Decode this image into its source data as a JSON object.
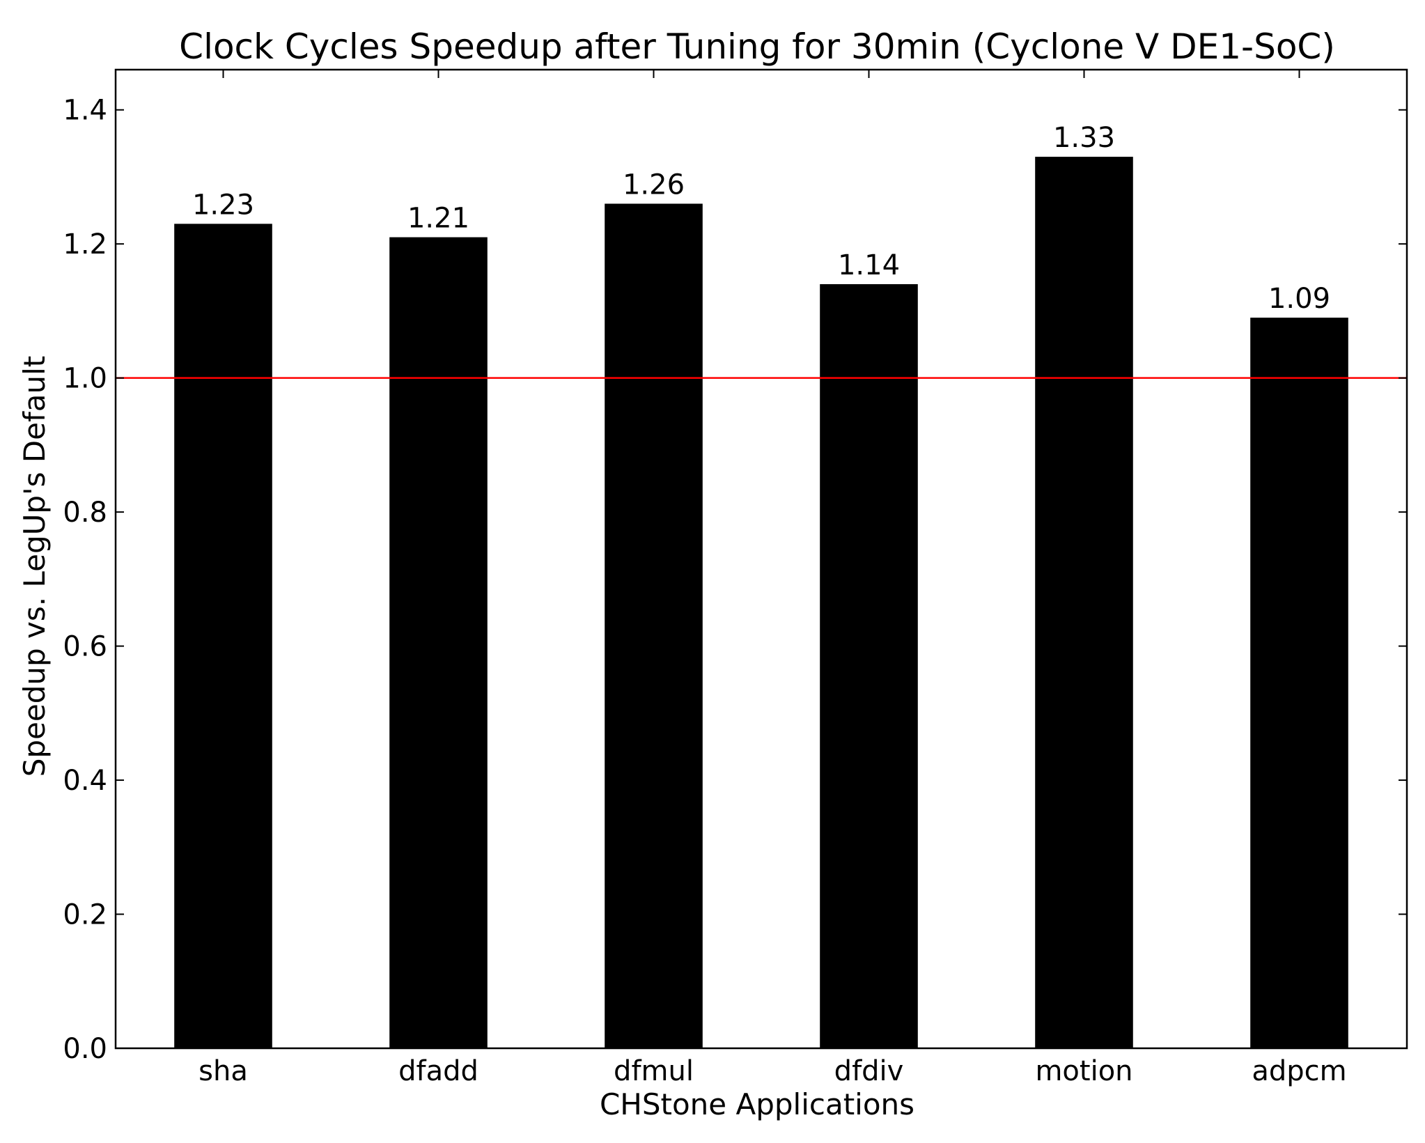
{
  "chart_data": {
    "type": "bar",
    "title": "Clock Cycles Speedup after Tuning for 30min (Cyclone V DE1-SoC)",
    "xlabel": "CHStone Applications",
    "ylabel": "Speedup vs. LegUp's Default",
    "categories": [
      "sha",
      "dfadd",
      "dfmul",
      "dfdiv",
      "motion",
      "adpcm"
    ],
    "values": [
      1.23,
      1.21,
      1.26,
      1.14,
      1.33,
      1.09
    ],
    "data_labels": [
      "1.23",
      "1.21",
      "1.26",
      "1.14",
      "1.33",
      "1.09"
    ],
    "ylim": [
      0.0,
      1.46
    ],
    "yticks": [
      0.0,
      0.2,
      0.4,
      0.6,
      0.8,
      1.0,
      1.2,
      1.4
    ],
    "ytick_labels": [
      "0.0",
      "0.2",
      "0.4",
      "0.6",
      "0.8",
      "1.0",
      "1.2",
      "1.4"
    ],
    "reference_line": 1.0,
    "grid": false,
    "legend": "none",
    "colors": {
      "bar": "#000000",
      "reference_line": "#ff0000",
      "axes": "#000000",
      "background": "#ffffff"
    }
  }
}
